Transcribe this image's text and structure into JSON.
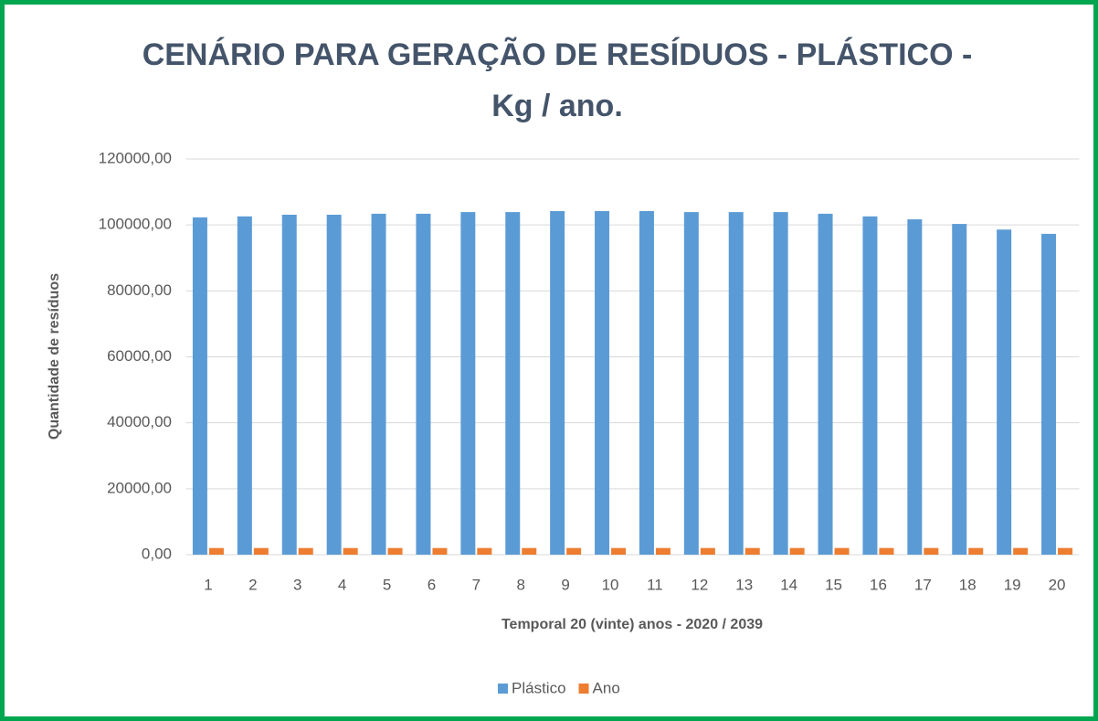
{
  "chart_data": {
    "type": "bar",
    "title": [
      "CENÁRIO PARA GERAÇÃO DE RESÍDUOS - PLÁSTICO -",
      "Kg / ano."
    ],
    "x_label": "Temporal 20 (vinte) anos - 2020 / 2039",
    "y_label": "Quantidade de resíduos",
    "categories": [
      "1",
      "2",
      "3",
      "4",
      "5",
      "6",
      "7",
      "8",
      "9",
      "10",
      "11",
      "12",
      "13",
      "14",
      "15",
      "16",
      "17",
      "18",
      "19",
      "20"
    ],
    "series": [
      {
        "name": "Plástico",
        "color": "#5b9bd5",
        "values": [
          102300,
          102600,
          103100,
          103100,
          103400,
          103400,
          103900,
          103900,
          104200,
          104200,
          104200,
          103900,
          103900,
          103900,
          103400,
          102600,
          101700,
          100300,
          98600,
          97300
        ]
      },
      {
        "name": "Ano",
        "color": "#ed7d31",
        "values": [
          2020,
          2021,
          2022,
          2023,
          2024,
          2025,
          2026,
          2027,
          2028,
          2029,
          2030,
          2031,
          2032,
          2033,
          2034,
          2035,
          2036,
          2037,
          2038,
          2039
        ]
      }
    ],
    "ylim": [
      0,
      120000
    ],
    "yticks": [
      {
        "value": 0,
        "label": "0,00"
      },
      {
        "value": 20000,
        "label": "20000,00"
      },
      {
        "value": 40000,
        "label": "40000,00"
      },
      {
        "value": 60000,
        "label": "60000,00"
      },
      {
        "value": 80000,
        "label": "80000,00"
      },
      {
        "value": 100000,
        "label": "100000,00"
      },
      {
        "value": 120000,
        "label": "120000,00"
      }
    ],
    "grid": true,
    "legend": "bottom"
  }
}
